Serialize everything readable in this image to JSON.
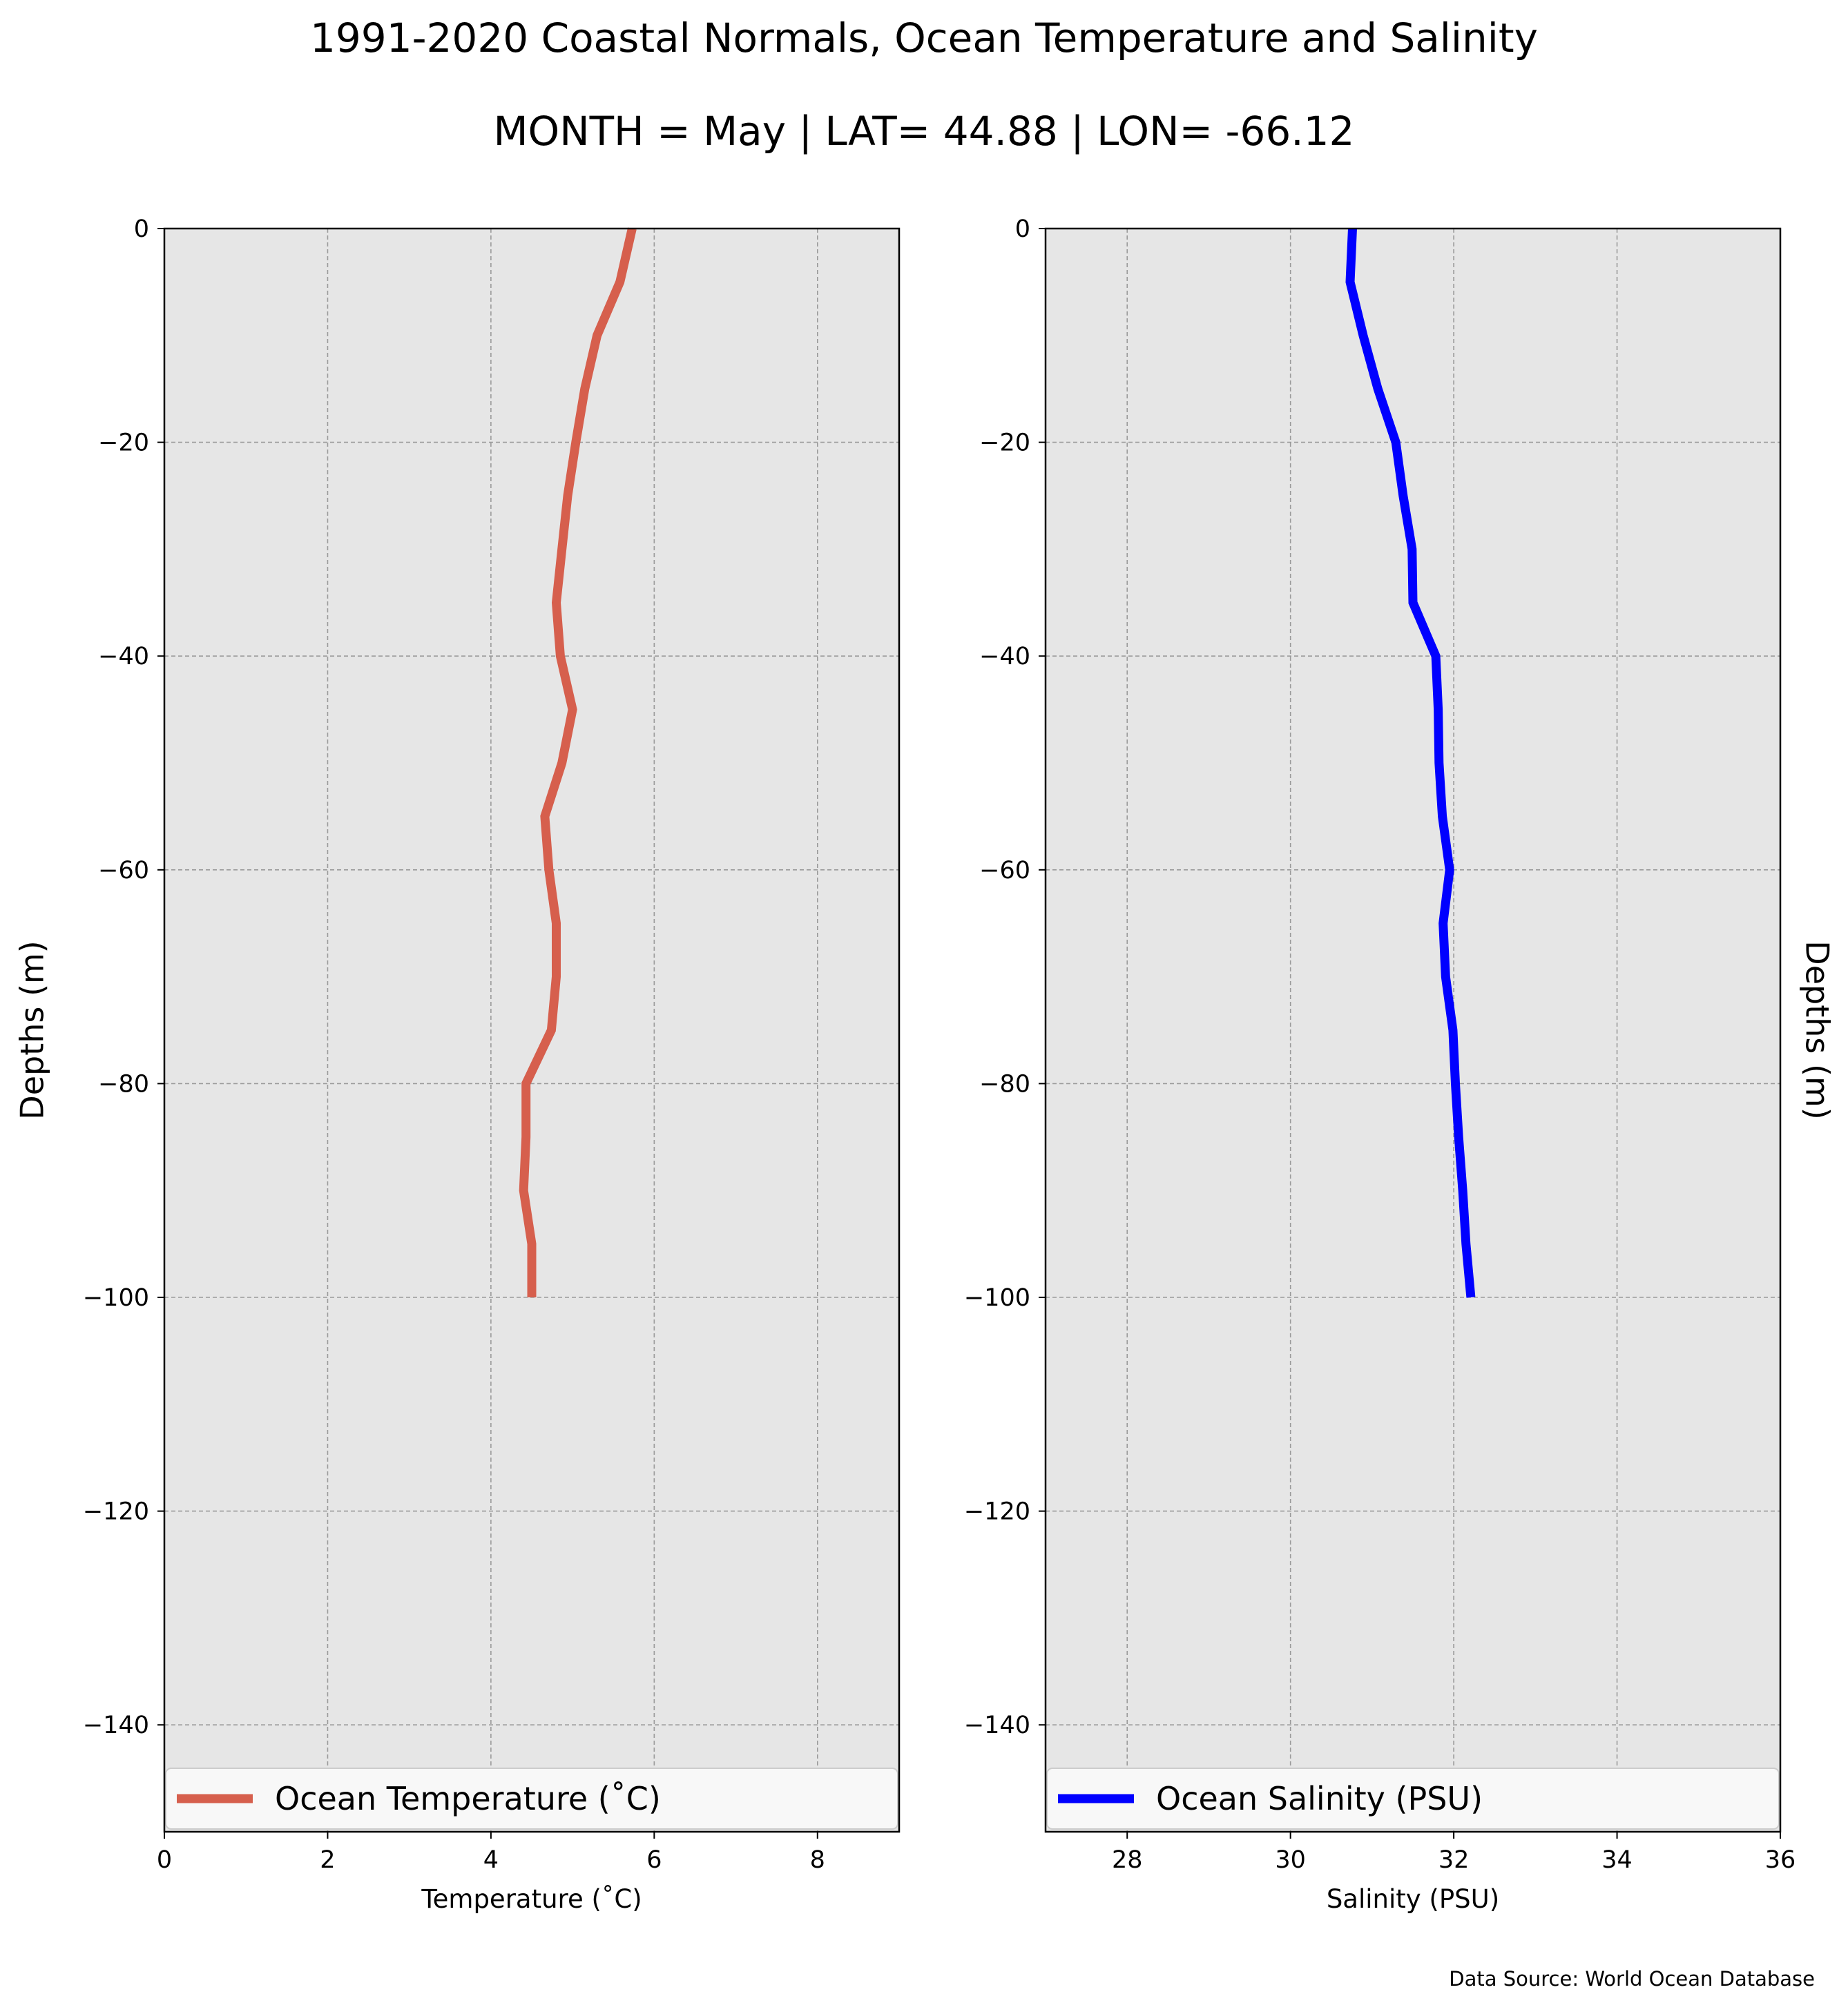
{
  "title": "1991-2020 Coastal Normals, Ocean Temperature and Salinity",
  "subtitle": "MONTH = May | LAT= 44.88 | LON= -66.12",
  "source": "Data Source: World Ocean Database",
  "colors": {
    "panel_background": "#e6e6e6",
    "grid": "#9a9a9a",
    "temperature": "#d65f4d",
    "salinity": "#0000ff",
    "legend_background": "#f8f8f8"
  },
  "chart_data": [
    {
      "type": "line",
      "xlabel": "Temperature ($^\\circ$C)",
      "xlabel_display": "Temperature (˚C)",
      "ylabel": "Depths (m)",
      "xlim": [
        0,
        9
      ],
      "ylim": [
        -150,
        0
      ],
      "xticks": [
        "0",
        "2",
        "4",
        "6",
        "8"
      ],
      "yticks": [
        "0",
        "−20",
        "−40",
        "−60",
        "−80",
        "−100",
        "−120",
        "−140"
      ],
      "grid": true,
      "legend_placement": "bottom",
      "series": [
        {
          "name": "Ocean Temperature (˚C)",
          "color": "#d65f4d",
          "points": [
            {
              "x": 5.73,
              "y": 0
            },
            {
              "x": 5.58,
              "y": -5
            },
            {
              "x": 5.3,
              "y": -10
            },
            {
              "x": 5.15,
              "y": -15
            },
            {
              "x": 5.04,
              "y": -20
            },
            {
              "x": 4.94,
              "y": -25
            },
            {
              "x": 4.87,
              "y": -30
            },
            {
              "x": 4.8,
              "y": -35
            },
            {
              "x": 4.85,
              "y": -40
            },
            {
              "x": 5.0,
              "y": -45
            },
            {
              "x": 4.87,
              "y": -50
            },
            {
              "x": 4.66,
              "y": -55
            },
            {
              "x": 4.71,
              "y": -60
            },
            {
              "x": 4.8,
              "y": -65
            },
            {
              "x": 4.8,
              "y": -70
            },
            {
              "x": 4.74,
              "y": -75
            },
            {
              "x": 4.43,
              "y": -80
            },
            {
              "x": 4.43,
              "y": -85
            },
            {
              "x": 4.4,
              "y": -90
            },
            {
              "x": 4.5,
              "y": -95
            },
            {
              "x": 4.5,
              "y": -100
            }
          ]
        }
      ]
    },
    {
      "type": "line",
      "xlabel": "Salinity (PSU)",
      "ylabel": "Depths (m)",
      "xlim": [
        27,
        36
      ],
      "ylim": [
        -150,
        0
      ],
      "xticks": [
        "28",
        "30",
        "32",
        "34",
        "36"
      ],
      "yticks": [
        "0",
        "−20",
        "−40",
        "−60",
        "−80",
        "−100",
        "−120",
        "−140"
      ],
      "grid": true,
      "legend_placement": "bottom",
      "series": [
        {
          "name": "Ocean Salinity (PSU)",
          "color": "#0000ff",
          "points": [
            {
              "x": 30.76,
              "y": 0
            },
            {
              "x": 30.73,
              "y": -5
            },
            {
              "x": 30.89,
              "y": -10
            },
            {
              "x": 31.07,
              "y": -15
            },
            {
              "x": 31.29,
              "y": -20
            },
            {
              "x": 31.38,
              "y": -25
            },
            {
              "x": 31.49,
              "y": -30
            },
            {
              "x": 31.5,
              "y": -35
            },
            {
              "x": 31.78,
              "y": -40
            },
            {
              "x": 31.81,
              "y": -45
            },
            {
              "x": 31.82,
              "y": -50
            },
            {
              "x": 31.86,
              "y": -55
            },
            {
              "x": 31.95,
              "y": -60
            },
            {
              "x": 31.87,
              "y": -65
            },
            {
              "x": 31.9,
              "y": -70
            },
            {
              "x": 31.99,
              "y": -75
            },
            {
              "x": 32.02,
              "y": -80
            },
            {
              "x": 32.06,
              "y": -85
            },
            {
              "x": 32.11,
              "y": -90
            },
            {
              "x": 32.15,
              "y": -95
            },
            {
              "x": 32.21,
              "y": -100
            }
          ]
        }
      ]
    }
  ]
}
